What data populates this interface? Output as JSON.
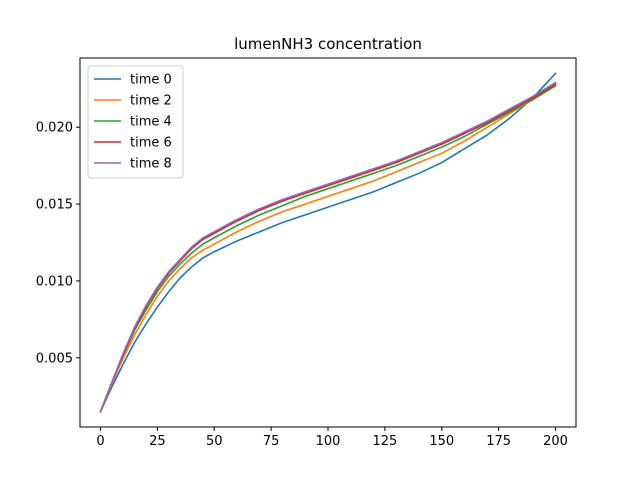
{
  "chart_data": {
    "type": "line",
    "title": "lumenNH3 concentration",
    "xlabel": "",
    "ylabel": "",
    "xlim": [
      -9,
      209
    ],
    "ylim": [
      0.0005,
      0.0245
    ],
    "xticks": [
      0,
      25,
      50,
      75,
      100,
      125,
      150,
      175,
      200
    ],
    "yticks": [
      0.005,
      0.01,
      0.015,
      0.02
    ],
    "ytick_labels": [
      "0.005",
      "0.010",
      "0.015",
      "0.020"
    ],
    "grid": false,
    "legend_position": "top-left",
    "x": [
      0,
      5,
      10,
      15,
      20,
      25,
      30,
      35,
      40,
      45,
      50,
      60,
      70,
      80,
      90,
      100,
      110,
      120,
      130,
      140,
      150,
      160,
      170,
      180,
      190,
      200
    ],
    "series": [
      {
        "name": "time 0",
        "color": "#1f77b4",
        "values": [
          0.0015,
          0.0031,
          0.0046,
          0.006,
          0.0072,
          0.0083,
          0.0093,
          0.0102,
          0.0109,
          0.0115,
          0.0119,
          0.0126,
          0.0132,
          0.0138,
          0.0143,
          0.0148,
          0.0153,
          0.0158,
          0.0164,
          0.017,
          0.0177,
          0.0186,
          0.0195,
          0.0206,
          0.0219,
          0.0235
        ]
      },
      {
        "name": "time 2",
        "color": "#ff7f0e",
        "values": [
          0.0015,
          0.0033,
          0.005,
          0.0065,
          0.0078,
          0.009,
          0.01,
          0.0108,
          0.0115,
          0.012,
          0.0124,
          0.0132,
          0.0139,
          0.0145,
          0.015,
          0.0155,
          0.016,
          0.0165,
          0.0171,
          0.0177,
          0.0183,
          0.0191,
          0.02,
          0.0209,
          0.0218,
          0.0227
        ]
      },
      {
        "name": "time 4",
        "color": "#2ca02c",
        "values": [
          0.0015,
          0.0034,
          0.0052,
          0.0068,
          0.0081,
          0.0093,
          0.0103,
          0.0111,
          0.0118,
          0.0124,
          0.0128,
          0.0136,
          0.0143,
          0.0149,
          0.0155,
          0.016,
          0.0165,
          0.017,
          0.0175,
          0.0181,
          0.0187,
          0.0194,
          0.0202,
          0.021,
          0.0218,
          0.0227
        ]
      },
      {
        "name": "time 6",
        "color": "#d62728",
        "values": [
          0.0015,
          0.0034,
          0.0052,
          0.0069,
          0.0083,
          0.0095,
          0.0105,
          0.0113,
          0.0121,
          0.0127,
          0.0131,
          0.0139,
          0.0146,
          0.0152,
          0.0157,
          0.0162,
          0.0167,
          0.0172,
          0.0177,
          0.0183,
          0.0189,
          0.0196,
          0.0203,
          0.0211,
          0.0219,
          0.0228
        ]
      },
      {
        "name": "time 8",
        "color": "#9467bd",
        "values": [
          0.0015,
          0.0034,
          0.0053,
          0.007,
          0.0084,
          0.0096,
          0.0106,
          0.0114,
          0.0122,
          0.0128,
          0.0132,
          0.014,
          0.0147,
          0.0153,
          0.0158,
          0.0163,
          0.0168,
          0.0173,
          0.0178,
          0.0184,
          0.019,
          0.0197,
          0.0204,
          0.0212,
          0.022,
          0.0229
        ]
      }
    ]
  }
}
